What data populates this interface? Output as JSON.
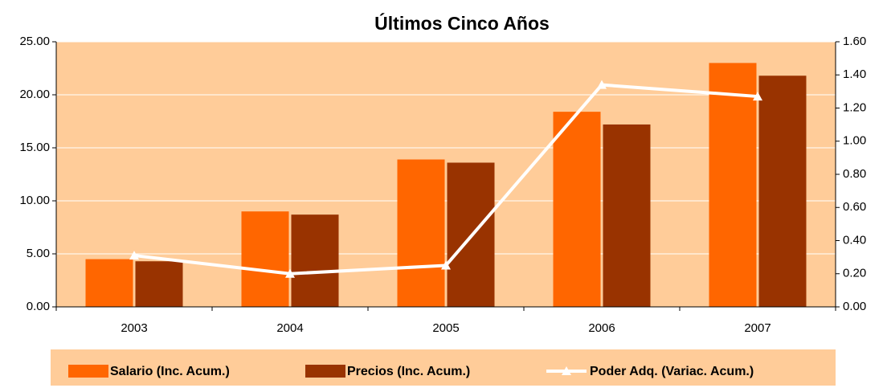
{
  "chart_data": {
    "type": "bar",
    "title": "Últimos Cinco Años",
    "categories": [
      "2003",
      "2004",
      "2005",
      "2006",
      "2007"
    ],
    "series": [
      {
        "name": "Salario (Inc. Acum.)",
        "color": "#ff6600",
        "values": [
          4.5,
          9.0,
          13.9,
          18.4,
          23.0
        ]
      },
      {
        "name": "Precios (Inc. Acum.)",
        "color": "#993300",
        "values": [
          4.3,
          8.7,
          13.6,
          17.2,
          21.8
        ]
      },
      {
        "name": "Poder Adq. (Variac. Acum.)",
        "color": "#ffffff",
        "type": "line",
        "axis": "y2",
        "values": [
          0.31,
          0.2,
          0.25,
          1.34,
          1.27
        ]
      }
    ],
    "ylim": [
      0,
      25
    ],
    "yticks": [
      {
        "value": 0,
        "label": "0.00"
      },
      {
        "value": 5,
        "label": "5.00"
      },
      {
        "value": 10,
        "label": "10.00"
      },
      {
        "value": 15,
        "label": "15.00"
      },
      {
        "value": 20,
        "label": "20.00"
      },
      {
        "value": 25,
        "label": "25.00"
      }
    ],
    "y2lim": [
      0,
      1.6
    ],
    "y2ticks": [
      {
        "value": 0,
        "label": "0.00"
      },
      {
        "value": 0.2,
        "label": "0.20"
      },
      {
        "value": 0.4,
        "label": "0.40"
      },
      {
        "value": 0.6,
        "label": "0.60"
      },
      {
        "value": 0.8,
        "label": "0.80"
      },
      {
        "value": 1.0,
        "label": "1.00"
      },
      {
        "value": 1.2,
        "label": "1.20"
      },
      {
        "value": 1.4,
        "label": "1.40"
      },
      {
        "value": 1.6,
        "label": "1.60"
      }
    ],
    "grid": true,
    "plot_background": "#ffcc99",
    "legend": "bottom"
  }
}
